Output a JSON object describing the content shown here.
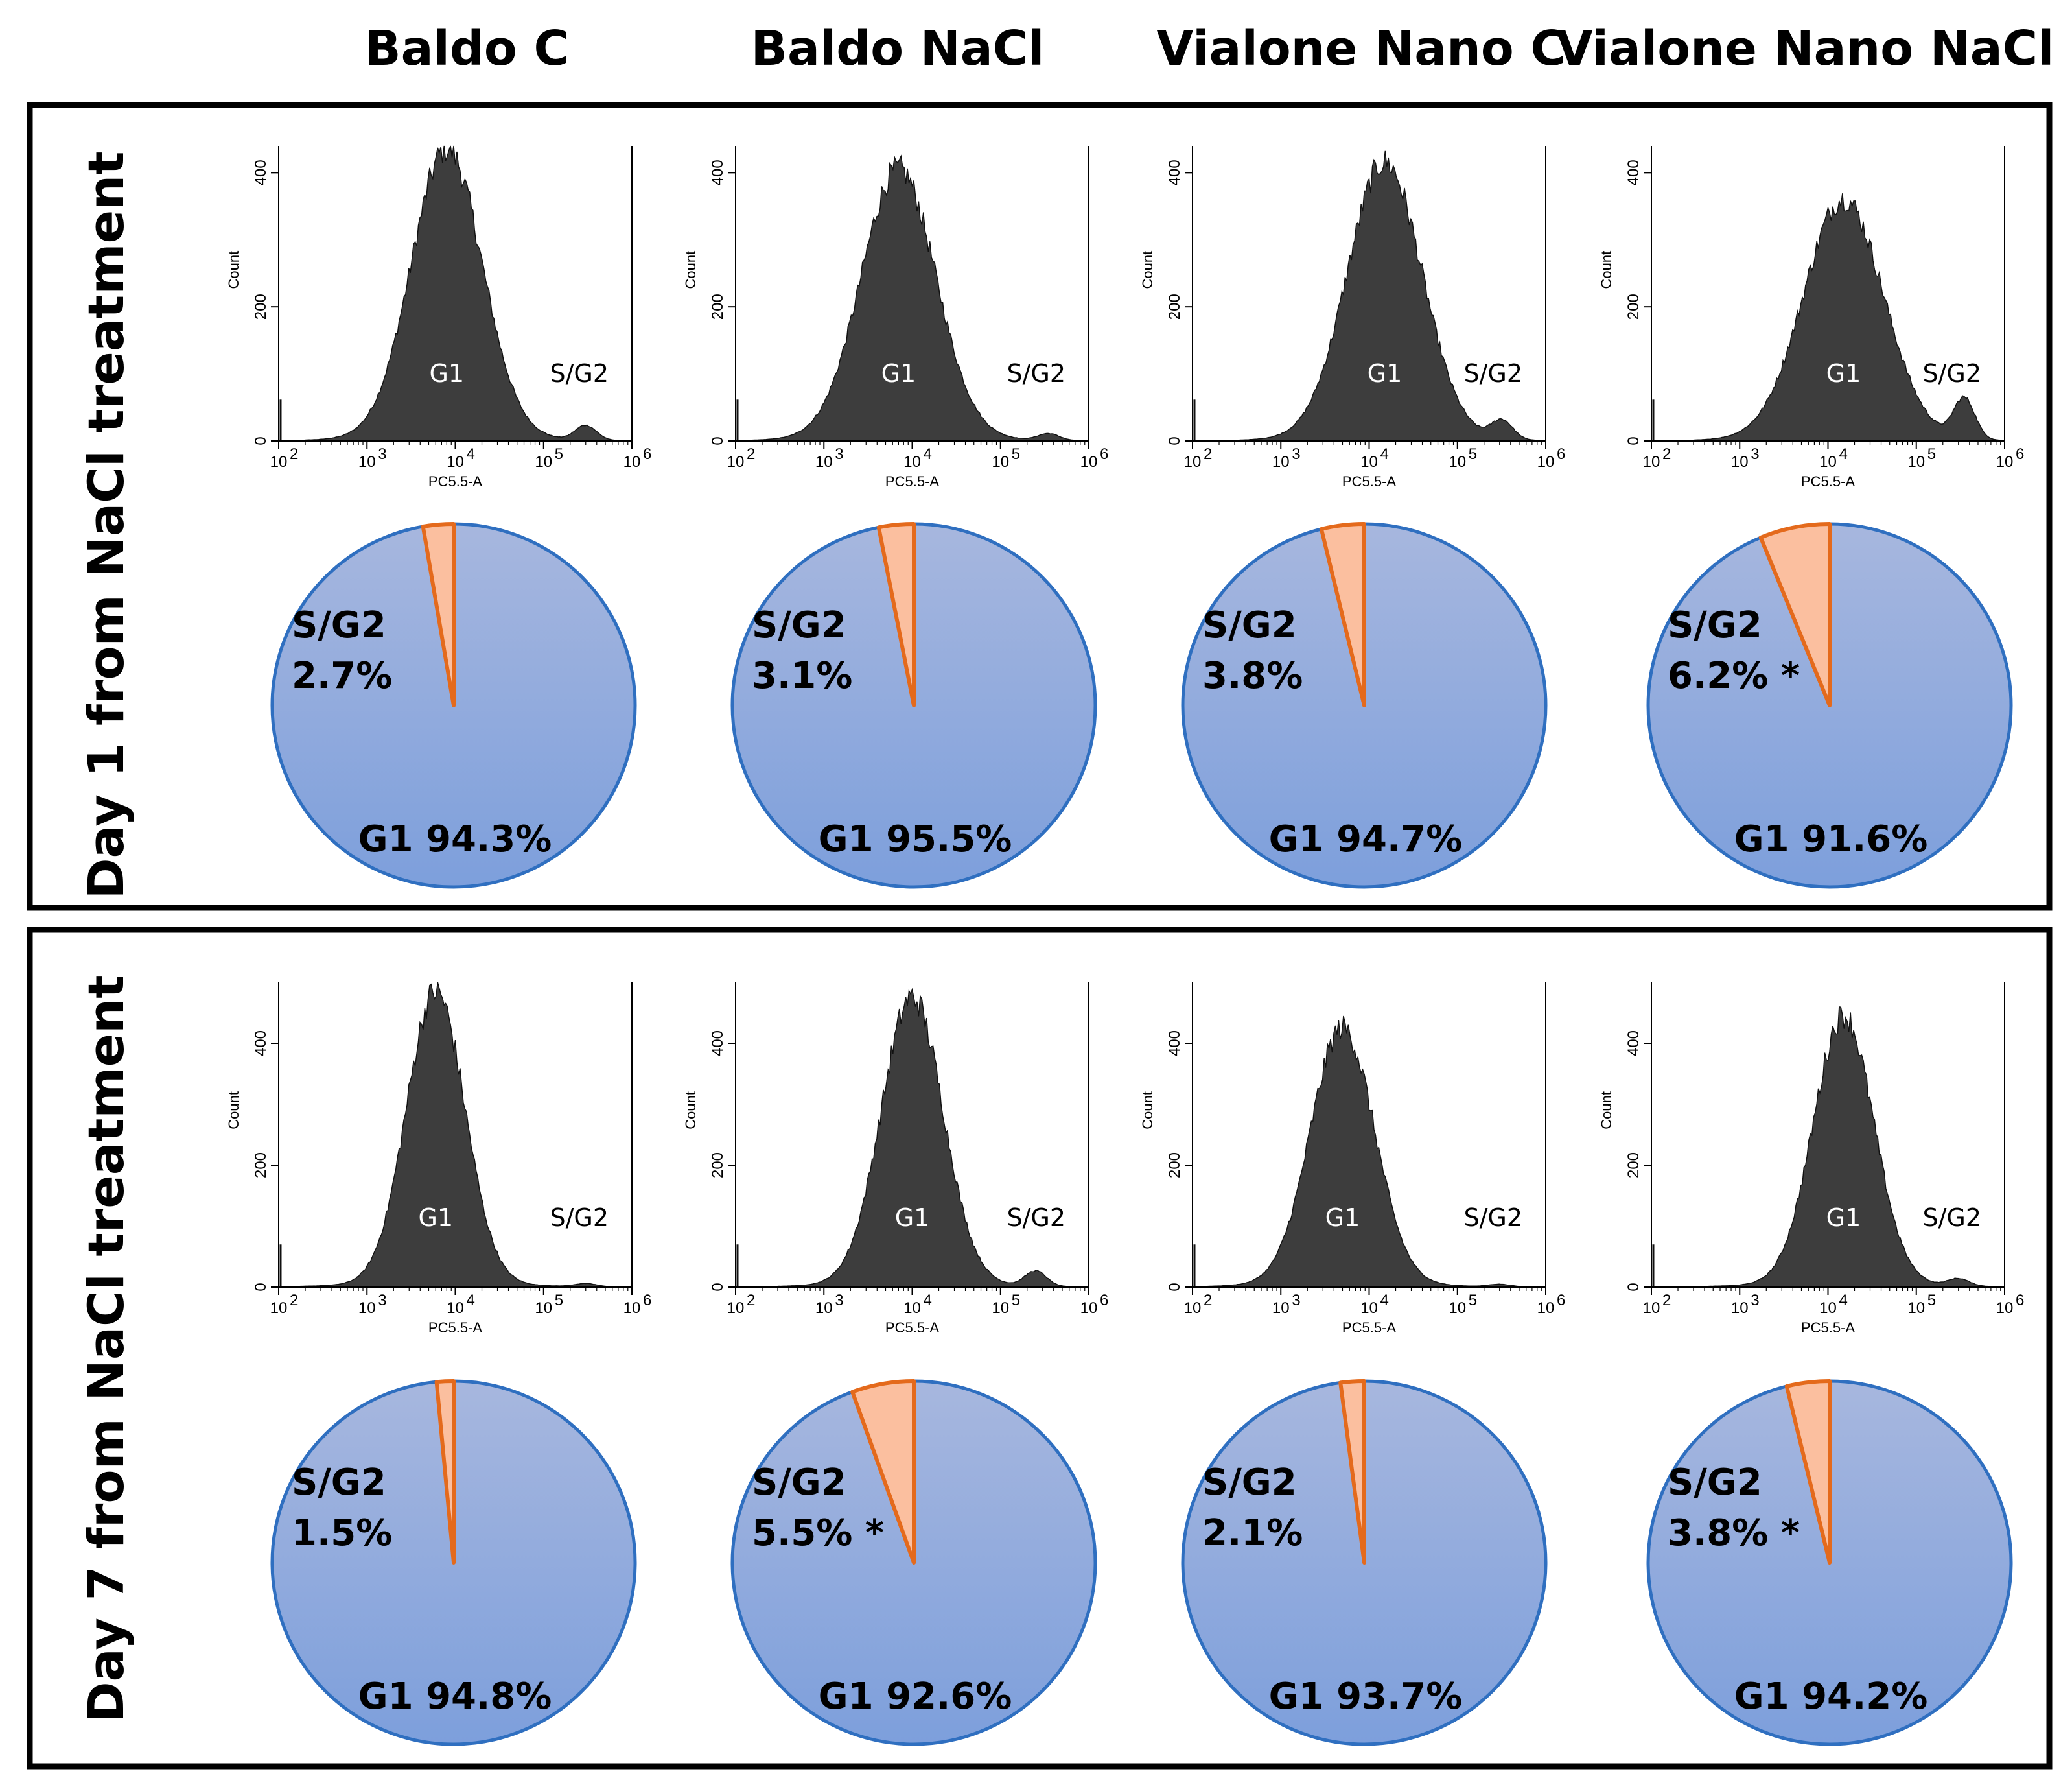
{
  "column_titles": [
    "Baldo C",
    "Baldo NaCl",
    "Vialone Nano C",
    "Vialone Nano NaCl"
  ],
  "row_titles": [
    "Day 1 from NaCl treatment",
    "Day 7 from NaCl treatment"
  ],
  "colors": {
    "histogram_fill": "#3d3d3d",
    "pie_g1_top": "#a7b7de",
    "pie_g1_bottom": "#7d9fdc",
    "pie_g1_stroke": "#2f6fc0",
    "pie_sg2_fill": "#fbbf9f",
    "pie_sg2_stroke": "#e46a1c",
    "panel_border": "#000000"
  },
  "chart_data": [
    {
      "type": "histogram+pie",
      "row": "Day 1 from NaCl treatment",
      "column": "Baldo C",
      "xlabel": "PC5.5-A",
      "ylabel": "Count",
      "x_scale": "log",
      "xlim": [
        100,
        1000000
      ],
      "ylim": [
        0,
        440
      ],
      "x_ticks": [
        "10",
        "10",
        "10",
        "10",
        "10"
      ],
      "x_tick_exp": [
        "2",
        "3",
        "4",
        "5",
        "6"
      ],
      "y_ticks": [
        "0",
        "200",
        "400"
      ],
      "gates": {
        "g1": "G1",
        "sg2": "S/G2"
      },
      "peak_x": 8000,
      "peak_y": 430,
      "width": 0.4,
      "sg2_peak_x": 300000,
      "sg2_peak_y": 22,
      "pie": {
        "slices": [
          {
            "label": "G1",
            "value": 94.3
          },
          {
            "label": "S/G2",
            "value": 2.7
          }
        ],
        "g1_text": "G1 94.3%",
        "sg2_label": "S/G2",
        "sg2_text": "2.7%"
      }
    },
    {
      "type": "histogram+pie",
      "row": "Day 1 from NaCl treatment",
      "column": "Baldo NaCl",
      "xlabel": "PC5.5-A",
      "ylabel": "Count",
      "x_scale": "log",
      "xlim": [
        100,
        1000000
      ],
      "ylim": [
        0,
        440
      ],
      "x_ticks": [
        "10",
        "10",
        "10",
        "10",
        "10"
      ],
      "x_tick_exp": [
        "2",
        "3",
        "4",
        "5",
        "6"
      ],
      "y_ticks": [
        "0",
        "200",
        "400"
      ],
      "gates": {
        "g1": "G1",
        "sg2": "S/G2"
      },
      "peak_x": 7000,
      "peak_y": 400,
      "width": 0.42,
      "sg2_peak_x": 350000,
      "sg2_peak_y": 10,
      "pie": {
        "slices": [
          {
            "label": "G1",
            "value": 95.5
          },
          {
            "label": "S/G2",
            "value": 3.1
          }
        ],
        "g1_text": "G1 95.5%",
        "sg2_label": "S/G2",
        "sg2_text": "3.1%"
      }
    },
    {
      "type": "histogram+pie",
      "row": "Day 1 from NaCl treatment",
      "column": "Vialone Nano C",
      "xlabel": "PC5.5-A",
      "ylabel": "Count",
      "x_scale": "log",
      "xlim": [
        100,
        1000000
      ],
      "ylim": [
        0,
        440
      ],
      "x_ticks": [
        "10",
        "10",
        "10",
        "10",
        "10"
      ],
      "x_tick_exp": [
        "2",
        "3",
        "4",
        "5",
        "6"
      ],
      "y_ticks": [
        "0",
        "200",
        "400"
      ],
      "gates": {
        "g1": "G1",
        "sg2": "S/G2"
      },
      "peak_x": 15000,
      "peak_y": 410,
      "width": 0.42,
      "sg2_peak_x": 320000,
      "sg2_peak_y": 28,
      "pie": {
        "slices": [
          {
            "label": "G1",
            "value": 94.7
          },
          {
            "label": "S/G2",
            "value": 3.8
          }
        ],
        "g1_text": "G1 94.7%",
        "sg2_label": "S/G2",
        "sg2_text": "3.8%"
      }
    },
    {
      "type": "histogram+pie",
      "row": "Day 1 from NaCl treatment",
      "column": "Vialone Nano NaCl",
      "xlabel": "PC5.5-A",
      "ylabel": "Count",
      "x_scale": "log",
      "xlim": [
        100,
        1000000
      ],
      "ylim": [
        0,
        440
      ],
      "x_ticks": [
        "10",
        "10",
        "10",
        "10",
        "10"
      ],
      "x_tick_exp": [
        "2",
        "3",
        "4",
        "5",
        "6"
      ],
      "y_ticks": [
        "0",
        "200",
        "400"
      ],
      "gates": {
        "g1": "G1",
        "sg2": "S/G2"
      },
      "peak_x": 15000,
      "peak_y": 355,
      "width": 0.45,
      "sg2_peak_x": 350000,
      "sg2_peak_y": 60,
      "pie": {
        "slices": [
          {
            "label": "G1",
            "value": 91.6
          },
          {
            "label": "S/G2",
            "value": 6.2
          }
        ],
        "g1_text": "G1 91.6%",
        "sg2_label": "S/G2",
        "sg2_text": "6.2% *"
      }
    },
    {
      "type": "histogram+pie",
      "row": "Day 7 from NaCl treatment",
      "column": "Baldo C",
      "xlabel": "PC5.5-A",
      "ylabel": "Count",
      "x_scale": "log",
      "xlim": [
        100,
        1000000
      ],
      "ylim": [
        0,
        500
      ],
      "x_ticks": [
        "10",
        "10",
        "10",
        "10",
        "10"
      ],
      "x_tick_exp": [
        "2",
        "3",
        "4",
        "5",
        "6"
      ],
      "y_ticks": [
        "0",
        "200",
        "400"
      ],
      "gates": {
        "g1": "G1",
        "sg2": "S/G2"
      },
      "peak_x": 6000,
      "peak_y": 480,
      "width": 0.33,
      "sg2_peak_x": 300000,
      "sg2_peak_y": 5,
      "pie": {
        "slices": [
          {
            "label": "G1",
            "value": 94.8
          },
          {
            "label": "S/G2",
            "value": 1.5
          }
        ],
        "g1_text": "G1 94.8%",
        "sg2_label": "S/G2",
        "sg2_text": "1.5%"
      }
    },
    {
      "type": "histogram+pie",
      "row": "Day 7 from NaCl treatment",
      "column": "Baldo NaCl",
      "xlabel": "PC5.5-A",
      "ylabel": "Count",
      "x_scale": "log",
      "xlim": [
        100,
        1000000
      ],
      "ylim": [
        0,
        500
      ],
      "x_ticks": [
        "10",
        "10",
        "10",
        "10",
        "10"
      ],
      "x_tick_exp": [
        "2",
        "3",
        "4",
        "5",
        "6"
      ],
      "y_ticks": [
        "0",
        "200",
        "400"
      ],
      "gates": {
        "g1": "G1",
        "sg2": "S/G2"
      },
      "peak_x": 10000,
      "peak_y": 470,
      "width": 0.35,
      "sg2_peak_x": 250000,
      "sg2_peak_y": 25,
      "pie": {
        "slices": [
          {
            "label": "G1",
            "value": 92.6
          },
          {
            "label": "S/G2",
            "value": 5.5
          }
        ],
        "g1_text": "G1 92.6%",
        "sg2_label": "S/G2",
        "sg2_text": "5.5% *"
      }
    },
    {
      "type": "histogram+pie",
      "row": "Day 7 from NaCl treatment",
      "column": "Vialone Nano C",
      "xlabel": "PC5.5-A",
      "ylabel": "Count",
      "x_scale": "log",
      "xlim": [
        100,
        1000000
      ],
      "ylim": [
        0,
        500
      ],
      "x_ticks": [
        "10",
        "10",
        "10",
        "10",
        "10"
      ],
      "x_tick_exp": [
        "2",
        "3",
        "4",
        "5",
        "6"
      ],
      "y_ticks": [
        "0",
        "200",
        "400"
      ],
      "gates": {
        "g1": "G1",
        "sg2": "S/G2"
      },
      "peak_x": 5000,
      "peak_y": 420,
      "width": 0.36,
      "sg2_peak_x": 300000,
      "sg2_peak_y": 4,
      "pie": {
        "slices": [
          {
            "label": "G1",
            "value": 93.7
          },
          {
            "label": "S/G2",
            "value": 2.1
          }
        ],
        "g1_text": "G1 93.7%",
        "sg2_label": "S/G2",
        "sg2_text": "2.1%"
      }
    },
    {
      "type": "histogram+pie",
      "row": "Day 7 from NaCl treatment",
      "column": "Vialone Nano NaCl",
      "xlabel": "PC5.5-A",
      "ylabel": "Count",
      "x_scale": "log",
      "xlim": [
        100,
        1000000
      ],
      "ylim": [
        0,
        500
      ],
      "x_ticks": [
        "10",
        "10",
        "10",
        "10",
        "10"
      ],
      "x_tick_exp": [
        "2",
        "3",
        "4",
        "5",
        "6"
      ],
      "y_ticks": [
        "0",
        "200",
        "400"
      ],
      "gates": {
        "g1": "G1",
        "sg2": "S/G2"
      },
      "peak_x": 15000,
      "peak_y": 440,
      "width": 0.34,
      "sg2_peak_x": 300000,
      "sg2_peak_y": 12,
      "pie": {
        "slices": [
          {
            "label": "G1",
            "value": 94.2
          },
          {
            "label": "S/G2",
            "value": 3.8
          }
        ],
        "g1_text": "G1 94.2%",
        "sg2_label": "S/G2",
        "sg2_text": "3.8% *"
      }
    }
  ]
}
